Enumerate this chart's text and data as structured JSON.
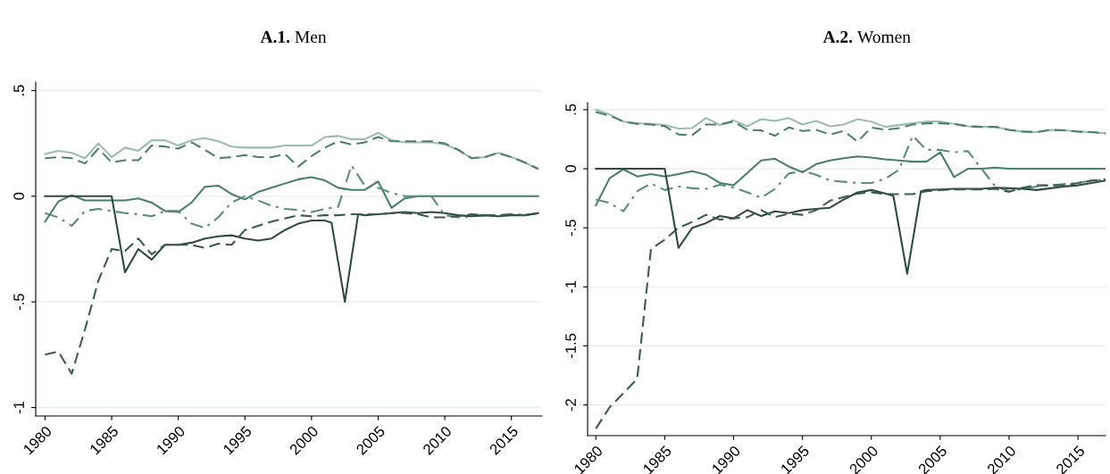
{
  "chart_data": [
    {
      "type": "line",
      "title": "A.1. Men",
      "x": [
        1980,
        1981,
        1982,
        1983,
        1984,
        1985,
        1986,
        1987,
        1988,
        1989,
        1990,
        1991,
        1992,
        1993,
        1994,
        1995,
        1996,
        1997,
        1998,
        1999,
        2000,
        2001,
        2002,
        2003,
        2004,
        2005,
        2006,
        2007,
        2008,
        2009,
        2010,
        2011,
        2012,
        2013,
        2014,
        2015,
        2016,
        2017
      ],
      "xlim": [
        1979.3,
        2017.3
      ],
      "xticks": [
        1980,
        1985,
        1990,
        1995,
        2000,
        2005,
        2010,
        2015
      ],
      "ylim": [
        -1.04,
        0.54
      ],
      "yticks": [
        {
          "value": -1,
          "label": "-1"
        },
        {
          "value": -0.5,
          "label": "-.5"
        },
        0,
        {
          "value": 0.5,
          "label": ".5"
        }
      ],
      "grid": "y",
      "legend": false,
      "series": [
        {
          "color": "#9bbcb4",
          "line_style": "solid",
          "values": [
            0.2,
            0.215,
            0.205,
            0.18,
            0.25,
            0.185,
            0.23,
            0.215,
            0.265,
            0.265,
            0.24,
            0.265,
            0.275,
            0.26,
            0.235,
            0.23,
            0.23,
            0.23,
            0.24,
            0.24,
            0.24,
            0.28,
            0.285,
            0.27,
            0.27,
            0.3,
            0.265,
            0.255,
            0.255,
            0.255,
            0.245,
            0.22,
            0.18,
            0.185,
            0.205,
            0.185,
            0.16,
            0.13
          ]
        },
        {
          "color": "#4f7f73",
          "line_style": "dashed",
          "values": [
            0.18,
            0.185,
            0.18,
            0.155,
            0.225,
            0.16,
            0.17,
            0.17,
            0.24,
            0.235,
            0.225,
            0.255,
            0.22,
            0.18,
            0.185,
            0.195,
            0.185,
            0.185,
            0.2,
            0.14,
            0.19,
            0.23,
            0.26,
            0.245,
            0.255,
            0.28,
            0.26,
            0.26,
            0.26,
            0.26,
            0.25,
            0.22,
            0.18,
            0.185,
            0.205,
            0.185,
            0.16,
            0.13
          ]
        },
        {
          "color": "#4a7d72",
          "line_style": "solid",
          "values": [
            -0.12,
            -0.025,
            0.005,
            -0.02,
            -0.02,
            -0.02,
            -0.02,
            -0.01,
            -0.03,
            -0.07,
            -0.075,
            -0.03,
            0.045,
            0.05,
            0.01,
            -0.015,
            0.02,
            0.04,
            0.06,
            0.08,
            0.09,
            0.075,
            0.04,
            0.03,
            0.03,
            0.07,
            -0.055,
            -0.01,
            0,
            0,
            0,
            0,
            0,
            0,
            0,
            0,
            0,
            0
          ]
        },
        {
          "color": "#5a8c80",
          "line_style": "dashdot",
          "values": [
            -0.08,
            -0.1,
            -0.14,
            -0.07,
            -0.06,
            -0.07,
            -0.08,
            -0.085,
            -0.095,
            -0.07,
            -0.07,
            -0.13,
            -0.15,
            -0.1,
            -0.03,
            0,
            -0.02,
            -0.045,
            -0.06,
            -0.065,
            -0.075,
            -0.06,
            -0.05,
            0.145,
            0.05,
            0.04,
            0.015,
            0,
            0,
            0,
            -0.09,
            -0.1,
            -0.095,
            -0.09,
            -0.095,
            -0.085,
            -0.09,
            -0.08
          ]
        },
        {
          "color": "#2f4a44",
          "line_style": "solid",
          "x": [
            1980,
            1981,
            1982,
            1983,
            1984,
            1985,
            1986,
            1987,
            1988,
            1989,
            1990,
            1991,
            1992,
            1993,
            1994,
            1995,
            1996,
            1997,
            1998,
            1999,
            2000,
            2001,
            2001.5,
            2002.5,
            2003.5,
            2004,
            2005,
            2006,
            2007,
            2008,
            2009,
            2010,
            2011,
            2012,
            2013,
            2014,
            2015,
            2016,
            2017
          ],
          "values": [
            0,
            0,
            0,
            0,
            0,
            0,
            -0.36,
            -0.25,
            -0.3,
            -0.23,
            -0.23,
            -0.22,
            -0.2,
            -0.19,
            -0.185,
            -0.2,
            -0.21,
            -0.2,
            -0.16,
            -0.13,
            -0.115,
            -0.115,
            -0.125,
            -0.5,
            -0.085,
            -0.09,
            -0.085,
            -0.08,
            -0.075,
            -0.08,
            -0.075,
            -0.08,
            -0.09,
            -0.095,
            -0.09,
            -0.095,
            -0.09,
            -0.09,
            -0.08
          ]
        },
        {
          "color": "#3a5a52",
          "line_style": "dashed",
          "values": [
            -0.75,
            -0.735,
            -0.84,
            -0.63,
            -0.4,
            -0.25,
            -0.26,
            -0.2,
            -0.275,
            -0.23,
            -0.23,
            -0.23,
            -0.245,
            -0.225,
            -0.23,
            -0.16,
            -0.14,
            -0.12,
            -0.105,
            -0.09,
            -0.095,
            -0.09,
            -0.09,
            -0.085,
            -0.085,
            -0.085,
            -0.08,
            -0.08,
            -0.085,
            -0.1,
            -0.1,
            -0.095,
            -0.085,
            -0.09,
            -0.09,
            -0.085,
            -0.09,
            -0.08
          ]
        }
      ]
    },
    {
      "type": "line",
      "title": "A.2. Women",
      "x": [
        1980,
        1981,
        1982,
        1983,
        1984,
        1985,
        1986,
        1987,
        1988,
        1989,
        1990,
        1991,
        1992,
        1993,
        1994,
        1995,
        1996,
        1997,
        1998,
        1999,
        2000,
        2001,
        2002,
        2003,
        2004,
        2005,
        2006,
        2007,
        2008,
        2009,
        2010,
        2011,
        2012,
        2013,
        2014,
        2015,
        2016,
        2017
      ],
      "xlim": [
        1979.4,
        2017.0
      ],
      "xticks": [
        1980,
        1985,
        1990,
        1995,
        2000,
        2005,
        2010,
        2015
      ],
      "ylim": [
        -2.26,
        0.56
      ],
      "yticks": [
        {
          "value": -2,
          "label": "-2"
        },
        {
          "value": -1.5,
          "label": "-1.5"
        },
        {
          "value": -1,
          "label": "-1"
        },
        {
          "value": -0.5,
          "label": "-.5"
        },
        0,
        {
          "value": 0.5,
          "label": ".5"
        }
      ],
      "grid": "y",
      "legend": false,
      "series": [
        {
          "color": "#9bbcb4",
          "line_style": "solid",
          "values": [
            0.5,
            0.46,
            0.4,
            0.385,
            0.38,
            0.37,
            0.34,
            0.345,
            0.43,
            0.37,
            0.41,
            0.36,
            0.42,
            0.405,
            0.43,
            0.375,
            0.405,
            0.36,
            0.375,
            0.42,
            0.4,
            0.355,
            0.37,
            0.385,
            0.4,
            0.4,
            0.38,
            0.36,
            0.355,
            0.355,
            0.33,
            0.315,
            0.31,
            0.33,
            0.325,
            0.315,
            0.31,
            0.3
          ]
        },
        {
          "color": "#4f7f73",
          "line_style": "dashed",
          "values": [
            0.48,
            0.45,
            0.4,
            0.38,
            0.375,
            0.36,
            0.29,
            0.285,
            0.375,
            0.375,
            0.4,
            0.33,
            0.325,
            0.28,
            0.35,
            0.32,
            0.33,
            0.29,
            0.32,
            0.23,
            0.35,
            0.33,
            0.345,
            0.375,
            0.385,
            0.385,
            0.38,
            0.36,
            0.355,
            0.355,
            0.33,
            0.315,
            0.31,
            0.33,
            0.325,
            0.315,
            0.31,
            0.3
          ]
        },
        {
          "color": "#4a7d72",
          "line_style": "solid",
          "values": [
            -0.31,
            -0.08,
            -0.005,
            -0.065,
            -0.045,
            -0.065,
            -0.045,
            -0.02,
            -0.05,
            -0.12,
            -0.14,
            -0.035,
            0.07,
            0.085,
            0.02,
            -0.03,
            0.04,
            0.07,
            0.09,
            0.105,
            0.095,
            0.08,
            0.07,
            0.06,
            0.06,
            0.14,
            -0.07,
            0,
            0,
            0.01,
            0,
            0,
            0,
            0,
            0,
            0,
            0,
            0
          ]
        },
        {
          "color": "#5a8c80",
          "line_style": "dashdot",
          "values": [
            -0.26,
            -0.29,
            -0.36,
            -0.19,
            -0.125,
            -0.18,
            -0.15,
            -0.165,
            -0.17,
            -0.135,
            -0.16,
            -0.2,
            -0.245,
            -0.17,
            -0.04,
            -0.02,
            -0.05,
            -0.1,
            -0.11,
            -0.12,
            -0.12,
            -0.085,
            -0.01,
            0.28,
            0.16,
            0.16,
            0.14,
            0.15,
            0.0,
            -0.15,
            -0.19,
            -0.17,
            -0.15,
            -0.14,
            -0.13,
            -0.12,
            -0.1,
            -0.09
          ]
        },
        {
          "color": "#2f4a44",
          "line_style": "solid",
          "x": [
            1980,
            1981,
            1982,
            1983,
            1984,
            1985,
            1986,
            1987,
            1988,
            1989,
            1990,
            1991,
            1992,
            1993,
            1994,
            1995,
            1996,
            1997,
            1998,
            1999,
            2000,
            2001,
            2001.6,
            2002.6,
            2003.6,
            2004,
            2005,
            2006,
            2007,
            2008,
            2009,
            2010,
            2011,
            2012,
            2013,
            2014,
            2015,
            2016,
            2017
          ],
          "values": [
            0,
            0,
            0,
            0,
            0,
            0,
            -0.67,
            -0.5,
            -0.46,
            -0.4,
            -0.42,
            -0.35,
            -0.4,
            -0.36,
            -0.375,
            -0.35,
            -0.34,
            -0.33,
            -0.26,
            -0.2,
            -0.18,
            -0.21,
            -0.23,
            -0.89,
            -0.19,
            -0.18,
            -0.175,
            -0.17,
            -0.17,
            -0.17,
            -0.16,
            -0.165,
            -0.17,
            -0.18,
            -0.165,
            -0.15,
            -0.14,
            -0.12,
            -0.1
          ]
        },
        {
          "color": "#3a5a52",
          "line_style": "dashed",
          "values": [
            -2.2,
            -2.02,
            -1.9,
            -1.78,
            -0.68,
            -0.6,
            -0.5,
            -0.45,
            -0.39,
            -0.43,
            -0.42,
            -0.41,
            -0.35,
            -0.41,
            -0.38,
            -0.39,
            -0.35,
            -0.27,
            -0.24,
            -0.21,
            -0.2,
            -0.215,
            -0.215,
            -0.215,
            -0.19,
            -0.18,
            -0.175,
            -0.175,
            -0.175,
            -0.17,
            -0.195,
            -0.16,
            -0.14,
            -0.14,
            -0.14,
            -0.12,
            -0.1,
            -0.09
          ]
        }
      ]
    }
  ]
}
